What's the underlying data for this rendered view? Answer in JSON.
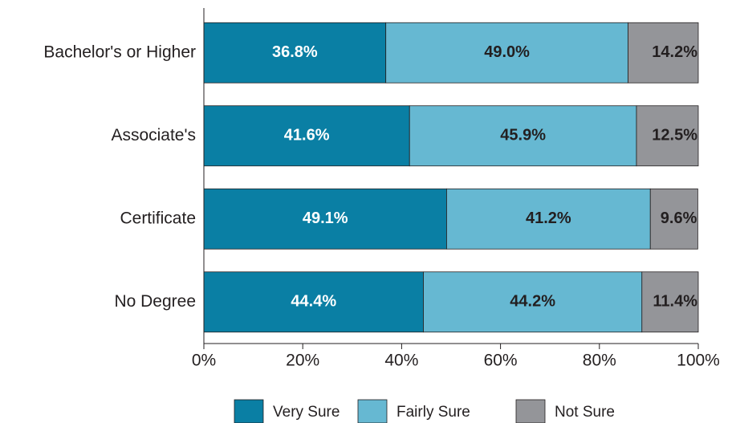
{
  "chart_data": {
    "type": "stacked-bar-horizontal",
    "categories": [
      "Bachelor's or Higher",
      "Associate's",
      "Certificate",
      "No Degree"
    ],
    "series": [
      {
        "name": "Very Sure",
        "color": "#0a7fa4",
        "values": [
          36.8,
          41.6,
          49.1,
          44.4
        ],
        "value_labels": [
          "36.8%",
          "41.6%",
          "49.1%",
          "44.4%"
        ]
      },
      {
        "name": "Fairly Sure",
        "color": "#66b8d2",
        "values": [
          49.0,
          45.9,
          41.2,
          44.2
        ],
        "value_labels": [
          "49.0%",
          "45.9%",
          "41.2%",
          "44.2%"
        ]
      },
      {
        "name": "Not Sure",
        "color": "#949599",
        "values": [
          14.2,
          12.5,
          9.6,
          11.4
        ],
        "value_labels": [
          "14.2%",
          "12.5%",
          "9.6%",
          "11.4%"
        ]
      }
    ],
    "xlim": [
      0,
      100
    ],
    "xticks": [
      {
        "value": 0,
        "label": "0%"
      },
      {
        "value": 20,
        "label": "20%"
      },
      {
        "value": 40,
        "label": "40%"
      },
      {
        "value": 60,
        "label": "60%"
      },
      {
        "value": 80,
        "label": "80%"
      },
      {
        "value": 100,
        "label": "100%"
      }
    ],
    "legend": "bottom"
  }
}
